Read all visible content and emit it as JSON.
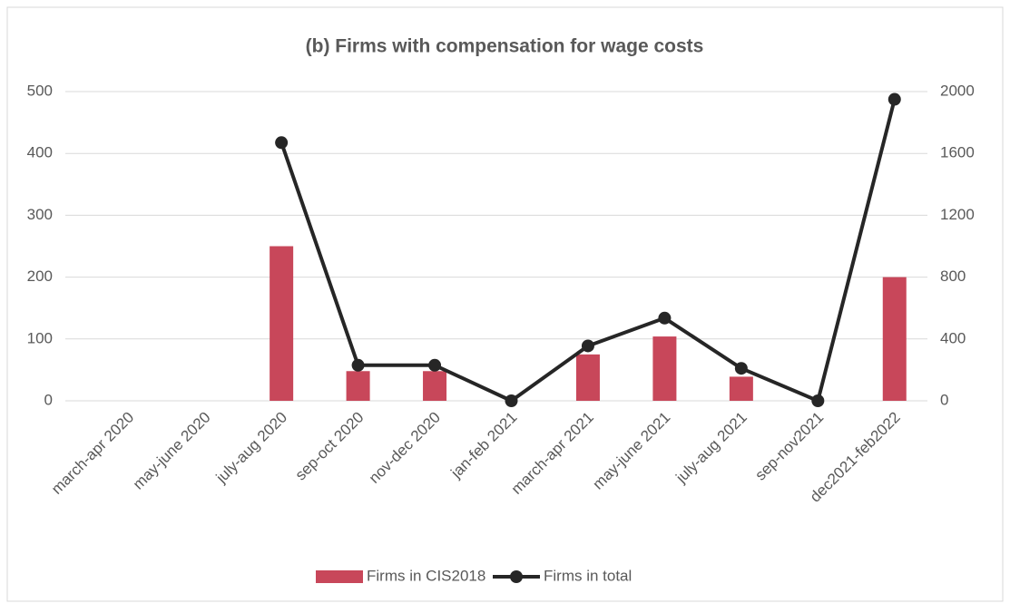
{
  "chart_data": {
    "type": "bar-line",
    "title": "(b) Firms with compensation for wage costs",
    "categories": [
      "march-apr 2020",
      "may-june 2020",
      "july-aug 2020",
      "sep-oct 2020",
      "nov-dec 2020",
      "jan-feb 2021",
      "march-apr 2021",
      "may-june 2021",
      "july-aug 2021",
      "sep-nov2021",
      "dec2021-feb2022"
    ],
    "series": [
      {
        "name": "Firms in CIS2018",
        "type": "bar",
        "color": "#c8475a",
        "values": [
          null,
          null,
          250,
          48,
          48,
          0,
          75,
          104,
          39,
          0,
          200
        ]
      },
      {
        "name": "Firms in total",
        "type": "line",
        "axis": "y2",
        "color": "#262626",
        "values": [
          null,
          null,
          1670,
          230,
          230,
          0,
          355,
          535,
          210,
          0,
          1950
        ]
      }
    ],
    "ylim": [
      0,
      500
    ],
    "yticks": [
      0,
      100,
      200,
      300,
      400,
      500
    ],
    "y2lim": [
      0,
      2000
    ],
    "y2ticks": [
      0,
      400,
      800,
      1200,
      1600,
      2000
    ],
    "grid": true,
    "legend": "bottom"
  }
}
